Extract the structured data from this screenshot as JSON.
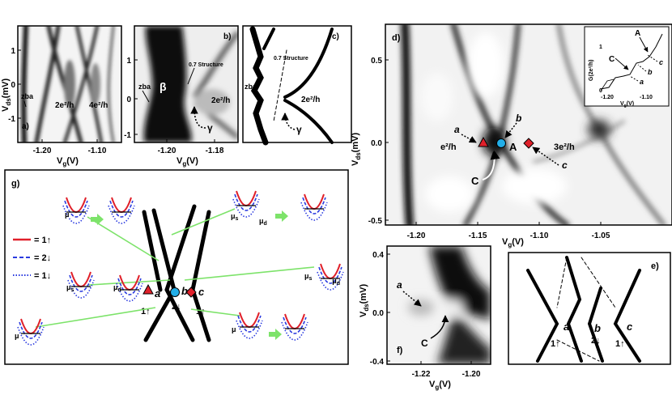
{
  "colors": {
    "up_band": "#e0202a",
    "down2_band": "#2a3adf",
    "down1_band": "#2a3adf",
    "arrow_green": "#7de36a",
    "marker_a": "#e0202a",
    "marker_b": "#22aee8",
    "marker_c": "#e0202a"
  },
  "panel_a": {
    "label": "a)",
    "ylabel": "V",
    "ylabel_sub": "ds",
    "ylabel_unit": "(mV)",
    "xlabel": "V",
    "xlabel_sub": "g",
    "xlabel_unit": "(V)",
    "yticks": [
      "1",
      "0",
      "-1"
    ],
    "xticks": [
      "-1.20",
      "-1.10"
    ],
    "ann_zba": "zba",
    "ann_2e": "2e²/h",
    "ann_4e": "4e²/h"
  },
  "panel_b": {
    "label": "b)",
    "xlabel": "V",
    "xlabel_sub": "g",
    "xlabel_unit": "(V)",
    "yticks": [
      "1",
      "0",
      "-1"
    ],
    "xticks": [
      "-1.20",
      "-1.18"
    ],
    "ann_zba": "zba",
    "ann_beta": "β",
    "ann_07": "0.7 Structure",
    "ann_2e": "2e²/h",
    "ann_gamma": "γ"
  },
  "panel_c": {
    "label": "c)",
    "ann_07": "0.7 Structure",
    "ann_zba": "zba",
    "ann_2e": "2e²/h",
    "ann_gamma": "γ"
  },
  "panel_d": {
    "label": "d)",
    "ylabel": "V",
    "ylabel_sub": "ds",
    "ylabel_unit": "(mV)",
    "xlabel": "V",
    "xlabel_sub": "g",
    "xlabel_unit": "(V)",
    "yticks": [
      "0.5",
      "0.0",
      "-0.5"
    ],
    "xticks": [
      "-1.20",
      "-1.15",
      "-1.10",
      "-1.05"
    ],
    "ann_a": "a",
    "ann_b": "b",
    "ann_c": "c",
    "ann_C": "C",
    "ann_A": "A",
    "ann_e2h": "e²/h",
    "ann_3e2h": "3e²/h",
    "inset": {
      "ylabel": "G(2e²/h)",
      "xlabel": "V",
      "xlabel_sub": "g",
      "xlabel_unit": "(V)",
      "yticks": [
        "1",
        "0"
      ],
      "xticks": [
        "-1.20",
        "-1.10"
      ],
      "ann_A": "A",
      "ann_C": "C",
      "ann_a": "a",
      "ann_b": "b",
      "ann_c": "c"
    }
  },
  "panel_e": {
    "label": "e)",
    "ann_a": "a",
    "ann_b": "b",
    "ann_c": "c",
    "spin_a": "1↑",
    "spin_b": "2↓",
    "spin_c": "1↑"
  },
  "panel_f": {
    "label": "f)",
    "ylabel": "V",
    "ylabel_sub": "ds",
    "ylabel_unit": "(mV)",
    "xlabel": "V",
    "xlabel_sub": "g",
    "xlabel_unit": "(V)",
    "yticks": [
      "0.4",
      "0.0",
      "-0.4"
    ],
    "xticks": [
      "-1.22",
      "-1.20"
    ],
    "ann_a": "a",
    "ann_C": "C"
  },
  "panel_g": {
    "label": "g)",
    "legend": [
      {
        "label": "= 1↑",
        "style": "solid-red"
      },
      {
        "label": "= 2↓",
        "style": "dashed-blue"
      },
      {
        "label": "= 1↓",
        "style": "dotted-blue"
      }
    ],
    "mu": "μ",
    "mu_s": "μ",
    "mu_s_sub": "s",
    "mu_d": "μ",
    "mu_d_sub": "d",
    "ann_a": "a",
    "ann_b": "b",
    "ann_c": "c",
    "spin_a": "1↑",
    "spin_b": "2↓",
    "spin_c": "1↑"
  }
}
